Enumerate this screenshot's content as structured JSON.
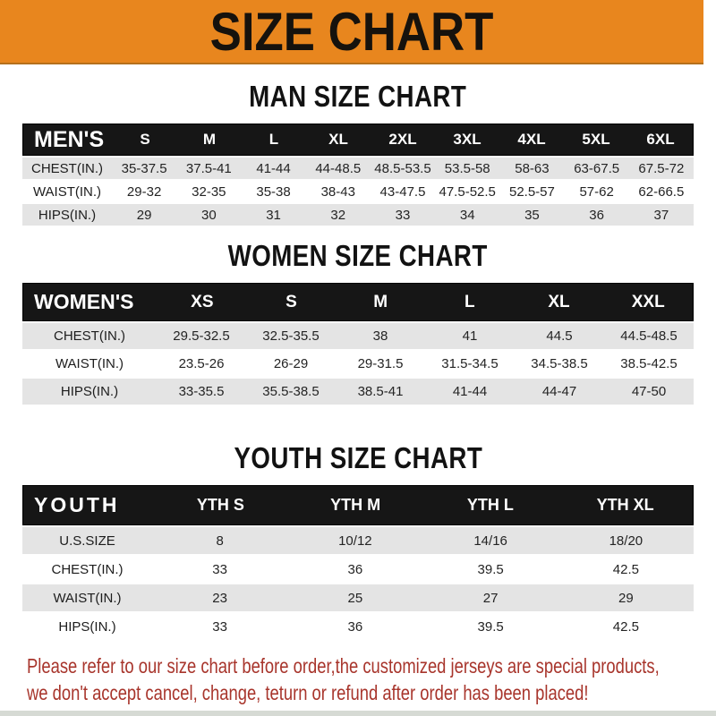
{
  "banner": {
    "title": "SIZE CHART"
  },
  "sections": [
    {
      "title": "MAN SIZE CHART",
      "header_label": "MEN'S",
      "columns": [
        "S",
        "M",
        "L",
        "XL",
        "2XL",
        "3XL",
        "4XL",
        "5XL",
        "6XL"
      ],
      "rows": [
        {
          "label": "CHEST(IN.)",
          "values": [
            "35-37.5",
            "37.5-41",
            "41-44",
            "44-48.5",
            "48.5-53.5",
            "53.5-58",
            "58-63",
            "63-67.5",
            "67.5-72"
          ]
        },
        {
          "label": "WAIST(IN.)",
          "values": [
            "29-32",
            "32-35",
            "35-38",
            "38-43",
            "43-47.5",
            "47.5-52.5",
            "52.5-57",
            "57-62",
            "62-66.5"
          ]
        },
        {
          "label": "HIPS(IN.)",
          "values": [
            "29",
            "30",
            "31",
            "32",
            "33",
            "34",
            "35",
            "36",
            "37"
          ]
        }
      ]
    },
    {
      "title": "WOMEN SIZE CHART",
      "header_label": "WOMEN'S",
      "columns": [
        "XS",
        "S",
        "M",
        "L",
        "XL",
        "XXL"
      ],
      "rows": [
        {
          "label": "CHEST(IN.)",
          "values": [
            "29.5-32.5",
            "32.5-35.5",
            "38",
            "41",
            "44.5",
            "44.5-48.5"
          ]
        },
        {
          "label": "WAIST(IN.)",
          "values": [
            "23.5-26",
            "26-29",
            "29-31.5",
            "31.5-34.5",
            "34.5-38.5",
            "38.5-42.5"
          ]
        },
        {
          "label": "HIPS(IN.)",
          "values": [
            "33-35.5",
            "35.5-38.5",
            "38.5-41",
            "41-44",
            "44-47",
            "47-50"
          ]
        }
      ]
    },
    {
      "title": "YOUTH SIZE CHART",
      "header_label": "YOUTH",
      "columns": [
        "YTH S",
        "YTH M",
        "YTH L",
        "YTH XL"
      ],
      "rows": [
        {
          "label": "U.S.SIZE",
          "values": [
            "8",
            "10/12",
            "14/16",
            "18/20"
          ]
        },
        {
          "label": "CHEST(IN.)",
          "values": [
            "33",
            "36",
            "39.5",
            "42.5"
          ]
        },
        {
          "label": "WAIST(IN.)",
          "values": [
            "23",
            "25",
            "27",
            "29"
          ]
        },
        {
          "label": "HIPS(IN.)",
          "values": [
            "33",
            "36",
            "39.5",
            "42.5"
          ]
        }
      ]
    }
  ],
  "footer": {
    "line1": "Please refer to our size chart before order,the customized jerseys are special products,",
    "line2": "we don't accept cancel, change, teturn or refund after order has been placed!"
  },
  "colors": {
    "banner_bg": "#E8861E",
    "header_bar": "#161616",
    "row_gray": "#E4E4E4",
    "note_red": "#A8352C"
  }
}
